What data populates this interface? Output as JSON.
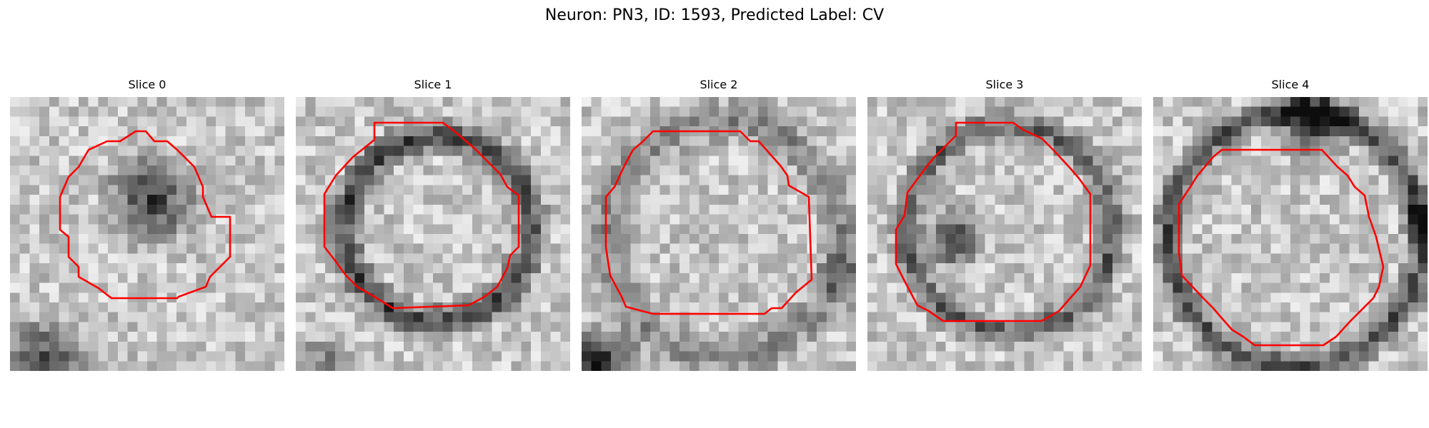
{
  "figure": {
    "title": "Neuron: PN3, ID: 1593, Predicted Label: CV"
  },
  "panels": [
    {
      "title": "Slice 0"
    },
    {
      "title": "Slice 1"
    },
    {
      "title": "Slice 2"
    },
    {
      "title": "Slice 3"
    },
    {
      "title": "Slice 4"
    }
  ],
  "colors": {
    "contour": "#ff0000",
    "colormap": "gray",
    "background": "#ffffff"
  }
}
